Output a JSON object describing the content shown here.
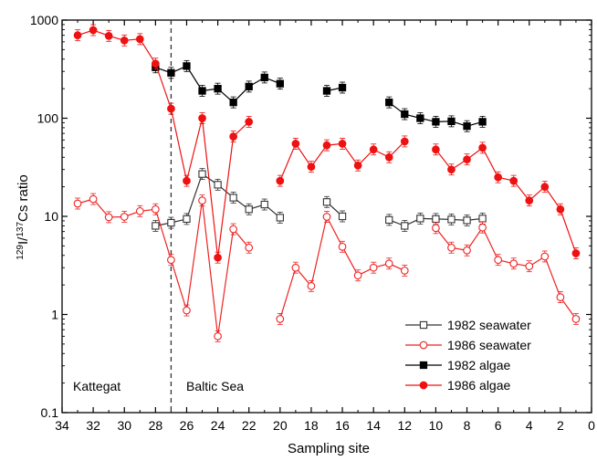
{
  "chart_data": {
    "type": "line",
    "xlabel": "Sampling site",
    "ylabel_parts": {
      "pre1": "129",
      "mid1": "I/",
      "pre2": "137",
      "mid2": "Cs ratio"
    },
    "xlim": [
      34,
      0
    ],
    "ylim": [
      0.1,
      1000
    ],
    "yscale": "log",
    "x_ticks": [
      "34",
      "32",
      "30",
      "28",
      "26",
      "24",
      "22",
      "20",
      "18",
      "16",
      "14",
      "12",
      "10",
      "8",
      "6",
      "4",
      "2",
      "0"
    ],
    "y_ticks": [
      "0.1",
      "1",
      "10",
      "100",
      "1000"
    ],
    "divider_x": 27,
    "regions": {
      "left": "Kattegat",
      "right": "Baltic Sea"
    },
    "legend_position": "bottom-right",
    "series": [
      {
        "name": "1982 seawater",
        "color": "#333333",
        "marker": "square-open",
        "segments": [
          [
            [
              28,
              8.0
            ],
            [
              27,
              8.6
            ],
            [
              26,
              9.4
            ],
            [
              25,
              27
            ],
            [
              24,
              21
            ],
            [
              23,
              15.5
            ],
            [
              22,
              11.8
            ],
            [
              21,
              13.2
            ],
            [
              20,
              9.7
            ]
          ],
          [
            [
              17,
              14
            ],
            [
              16,
              10
            ]
          ],
          [
            [
              13,
              9.2
            ],
            [
              12,
              8.0
            ],
            [
              11,
              9.5
            ],
            [
              10,
              9.4
            ],
            [
              9,
              9.3
            ],
            [
              8,
              9.1
            ],
            [
              7,
              9.5
            ]
          ]
        ]
      },
      {
        "name": "1986 seawater",
        "color": "#ee2222",
        "marker": "circle-open",
        "segments": [
          [
            [
              33,
              13.5
            ],
            [
              32,
              15
            ],
            [
              31,
              9.8
            ],
            [
              30,
              9.9
            ],
            [
              29,
              11.3
            ],
            [
              28,
              11.8
            ],
            [
              27,
              3.6
            ],
            [
              26,
              1.1
            ],
            [
              25,
              14.5
            ],
            [
              24,
              0.6
            ],
            [
              23,
              7.4
            ],
            [
              22,
              4.8
            ]
          ],
          [
            [
              20,
              0.9
            ],
            [
              19,
              3.0
            ],
            [
              18,
              1.95
            ],
            [
              17,
              9.9
            ],
            [
              16,
              4.9
            ],
            [
              15,
              2.5
            ],
            [
              14,
              3.0
            ],
            [
              13,
              3.3
            ],
            [
              12,
              2.8
            ]
          ],
          [
            [
              10,
              7.6
            ],
            [
              9,
              4.8
            ],
            [
              8,
              4.5
            ],
            [
              7,
              7.7
            ],
            [
              6,
              3.6
            ],
            [
              5,
              3.3
            ],
            [
              4,
              3.1
            ],
            [
              3,
              3.9
            ],
            [
              2,
              1.5
            ],
            [
              1,
              0.9
            ]
          ]
        ]
      },
      {
        "name": "1982 algae",
        "color": "#000000",
        "marker": "square-filled",
        "segments": [
          [
            [
              28,
              330
            ],
            [
              27,
              290
            ],
            [
              26,
              340
            ],
            [
              25,
              190
            ],
            [
              24,
              200
            ],
            [
              23,
              145
            ],
            [
              22,
              210
            ],
            [
              21,
              260
            ],
            [
              20,
              225
            ]
          ],
          [
            [
              17,
              190
            ],
            [
              16,
              205
            ]
          ],
          [
            [
              13,
              145
            ],
            [
              12,
              110
            ],
            [
              11,
              100
            ],
            [
              10,
              92
            ],
            [
              9,
              93
            ],
            [
              8,
              83
            ],
            [
              7,
              92
            ]
          ]
        ]
      },
      {
        "name": "1986 algae",
        "color": "#ee1111",
        "marker": "circle-filled",
        "segments": [
          [
            [
              33,
              700
            ],
            [
              32,
              790
            ],
            [
              31,
              690
            ],
            [
              30,
              620
            ],
            [
              29,
              640
            ],
            [
              28,
              360
            ],
            [
              27,
              125
            ],
            [
              26,
              23
            ],
            [
              25,
              100
            ],
            [
              24,
              3.8
            ],
            [
              23,
              65
            ],
            [
              22,
              92
            ]
          ],
          [
            [
              20,
              23
            ],
            [
              19,
              55
            ],
            [
              18,
              32
            ],
            [
              17,
              53
            ],
            [
              16,
              55
            ],
            [
              15,
              33
            ],
            [
              14,
              48
            ],
            [
              13,
              40
            ],
            [
              12,
              58
            ]
          ],
          [
            [
              10,
              48
            ],
            [
              9,
              30
            ],
            [
              8,
              38
            ],
            [
              7,
              50
            ],
            [
              6,
              25
            ],
            [
              5,
              23
            ],
            [
              4,
              14.5
            ],
            [
              3,
              20
            ],
            [
              2,
              11.8
            ],
            [
              1,
              4.2
            ]
          ]
        ]
      }
    ]
  }
}
